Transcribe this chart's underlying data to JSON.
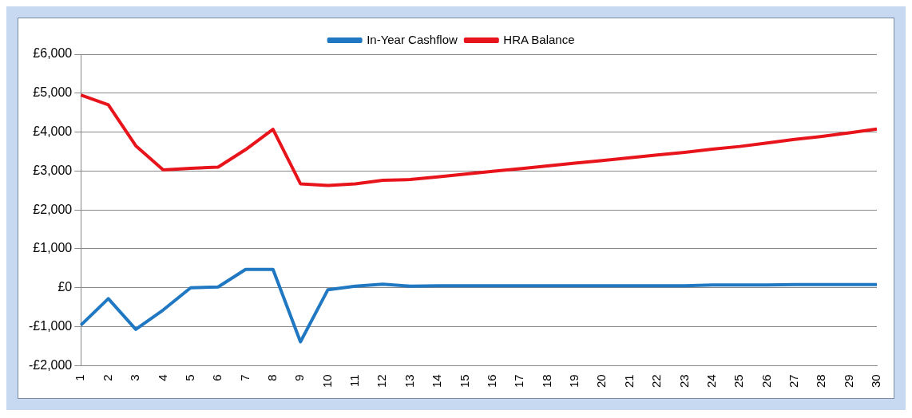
{
  "chart_data": {
    "type": "line",
    "categories": [
      "1",
      "2",
      "3",
      "4",
      "5",
      "6",
      "7",
      "8",
      "9",
      "10",
      "11",
      "12",
      "13",
      "14",
      "15",
      "16",
      "17",
      "18",
      "19",
      "20",
      "21",
      "22",
      "23",
      "24",
      "25",
      "26",
      "27",
      "28",
      "29",
      "30"
    ],
    "series": [
      {
        "name": "In-Year Cashflow",
        "color": "#1f78c1",
        "values": [
          -960,
          -280,
          -1070,
          -570,
          0,
          20,
          470,
          470,
          -1390,
          -50,
          40,
          90,
          40,
          50,
          50,
          50,
          50,
          50,
          50,
          50,
          50,
          50,
          50,
          70,
          70,
          70,
          80,
          80,
          80,
          80
        ]
      },
      {
        "name": "HRA Balance",
        "color": "#e8141b",
        "values": [
          4950,
          4700,
          3650,
          3030,
          3070,
          3100,
          3550,
          4070,
          2670,
          2630,
          2670,
          2760,
          2780,
          2850,
          2920,
          2990,
          3060,
          3130,
          3200,
          3270,
          3340,
          3410,
          3480,
          3560,
          3630,
          3720,
          3810,
          3890,
          3980,
          4080
        ]
      }
    ],
    "ylim": [
      -2000,
      6000
    ],
    "yticks": [
      {
        "value": -2000,
        "label": "-£2,000"
      },
      {
        "value": -1000,
        "label": "-£1,000"
      },
      {
        "value": 0,
        "label": "£0"
      },
      {
        "value": 1000,
        "label": "£1,000"
      },
      {
        "value": 2000,
        "label": "£2,000"
      },
      {
        "value": 3000,
        "label": "£3,000"
      },
      {
        "value": 4000,
        "label": "£4,000"
      },
      {
        "value": 5000,
        "label": "£5,000"
      },
      {
        "value": 6000,
        "label": "£6,000"
      }
    ],
    "grid": "y",
    "legend": "top",
    "marker": "none",
    "line_style": "solid"
  }
}
